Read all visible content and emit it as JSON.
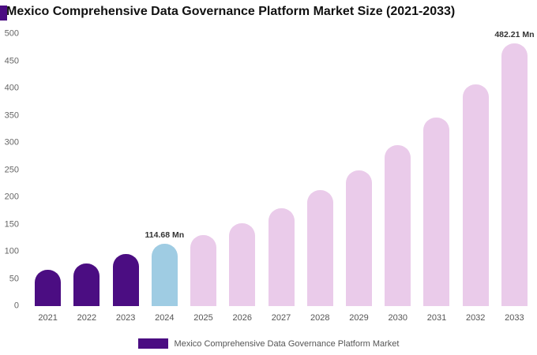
{
  "colors": {
    "purple": "#4B0D82",
    "blue": "#9FCCE3",
    "pink": "#EACBEA"
  },
  "chart_data": {
    "type": "bar",
    "title": "Mexico Comprehensive Data Governance Platform Market Size (2021-2033)",
    "categories": [
      "2021",
      "2022",
      "2023",
      "2024",
      "2025",
      "2026",
      "2027",
      "2028",
      "2029",
      "2030",
      "2031",
      "2032",
      "2033"
    ],
    "values": [
      67,
      78,
      95,
      114.68,
      130,
      152,
      180,
      213,
      250,
      295,
      347,
      407,
      482.21
    ],
    "xlabel": "",
    "ylabel": "",
    "ylim": [
      0,
      500
    ],
    "ytick_step": 50,
    "grid": false,
    "bar_colors": [
      "#4B0D82",
      "#4B0D82",
      "#4B0D82",
      "#9FCCE3",
      "#EACBEA",
      "#EACBEA",
      "#EACBEA",
      "#EACBEA",
      "#EACBEA",
      "#EACBEA",
      "#EACBEA",
      "#EACBEA",
      "#EACBEA"
    ],
    "annotations": [
      {
        "index": 3,
        "text": "114.68 Mn"
      },
      {
        "index": 12,
        "text": "482.21 Mn"
      }
    ],
    "legend": {
      "label": "Mexico Comprehensive Data Governance Platform Market",
      "position": "bottom",
      "swatch_color": "#4B0D82"
    }
  }
}
